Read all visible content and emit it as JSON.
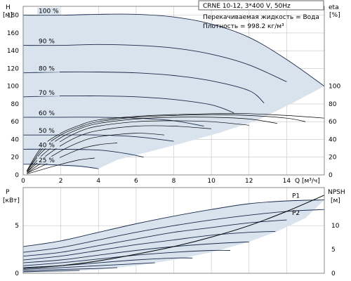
{
  "title": "CRNE 10-12, 3*400 V, 50Hz",
  "fluid_label": "Перекачиваемая жидкость = Вода",
  "density_label": "Плотность = 998.2 кг/м³",
  "colors": {
    "envelope": "#d9e3ee",
    "curve": "#1a2a4a",
    "grid": "#c4c4c4",
    "efficiency": "#000000"
  },
  "chart_data": [
    {
      "type": "line",
      "id": "head",
      "xlabel": "Q [м³/ч]",
      "ylabel_left": [
        "H",
        "[м]"
      ],
      "ylabel_right": [
        "eta",
        "[%]"
      ],
      "xlim": [
        0,
        16
      ],
      "ylim": [
        0,
        190
      ],
      "y2lim": [
        0,
        190
      ],
      "xticks": [
        "0",
        "2",
        "4",
        "6",
        "8",
        "10",
        "12",
        "14"
      ],
      "yticks": [
        "0",
        "20",
        "40",
        "60",
        "80",
        "100",
        "120",
        "140",
        "160",
        "180"
      ],
      "y2ticks": [
        "0",
        "20",
        "40",
        "60",
        "80",
        "100"
      ],
      "grid": true,
      "speed_curves": [
        {
          "name": "100 %",
          "points": [
            [
              0,
              180
            ],
            [
              2,
              180
            ],
            [
              4,
              181
            ],
            [
              6,
              181
            ],
            [
              8,
              178
            ],
            [
              10,
              170
            ],
            [
              12,
              155
            ],
            [
              14,
              130
            ],
            [
              16,
              100
            ]
          ]
        },
        {
          "name": "90 %",
          "points": [
            [
              0,
              146
            ],
            [
              2,
              146
            ],
            [
              4,
              147
            ],
            [
              6,
              146
            ],
            [
              8,
              143
            ],
            [
              10,
              136
            ],
            [
              12,
              124
            ],
            [
              14,
              105
            ]
          ]
        },
        {
          "name": "80 %",
          "points": [
            [
              0,
              115
            ],
            [
              2,
              116
            ],
            [
              4,
              116
            ],
            [
              6,
              115
            ],
            [
              8,
              112
            ],
            [
              10,
              106
            ],
            [
              12,
              95
            ],
            [
              12.8,
              81
            ]
          ]
        },
        {
          "name": "70 %",
          "points": [
            [
              0,
              88
            ],
            [
              2,
              89
            ],
            [
              4,
              89
            ],
            [
              6,
              88
            ],
            [
              8,
              85
            ],
            [
              10,
              79
            ],
            [
              11.2,
              70
            ]
          ]
        },
        {
          "name": "60 %",
          "points": [
            [
              0,
              65
            ],
            [
              2,
              65
            ],
            [
              4,
              65
            ],
            [
              6,
              64
            ],
            [
              8,
              61
            ],
            [
              9.6,
              55
            ]
          ]
        },
        {
          "name": "50 %",
          "points": [
            [
              0,
              45
            ],
            [
              2,
              45
            ],
            [
              4,
              45
            ],
            [
              6,
              43
            ],
            [
              8,
              38
            ]
          ]
        },
        {
          "name": "40 %",
          "points": [
            [
              0,
              29
            ],
            [
              2,
              29
            ],
            [
              4,
              28
            ],
            [
              5.5,
              24
            ],
            [
              6.4,
              20
            ]
          ]
        },
        {
          "name": "25 %",
          "points": [
            [
              0,
              12
            ],
            [
              1,
              12
            ],
            [
              2,
              11
            ],
            [
              3,
              10
            ],
            [
              4,
              7
            ]
          ]
        }
      ],
      "envelope": [
        [
          0,
          180
        ],
        [
          2,
          180
        ],
        [
          4,
          181
        ],
        [
          6,
          181
        ],
        [
          8,
          178
        ],
        [
          10,
          170
        ],
        [
          12,
          155
        ],
        [
          14,
          130
        ],
        [
          16,
          100
        ],
        [
          14.4,
          82
        ],
        [
          12.5,
          62
        ],
        [
          10.5,
          48
        ],
        [
          8.5,
          36
        ],
        [
          6.5,
          25
        ],
        [
          5,
          17
        ],
        [
          4,
          7
        ],
        [
          2,
          10
        ],
        [
          0,
          12
        ]
      ],
      "efficiency_curves": [
        {
          "points": [
            [
              0.2,
              5
            ],
            [
              1,
              32
            ],
            [
              2,
              47
            ],
            [
              3,
              56
            ],
            [
              4,
              62
            ],
            [
              6,
              66
            ],
            [
              8,
              68
            ],
            [
              10,
              69
            ],
            [
              12,
              69
            ],
            [
              14,
              67
            ],
            [
              16,
              64
            ]
          ]
        },
        {
          "points": [
            [
              0.2,
              4
            ],
            [
              1,
              29
            ],
            [
              2,
              45
            ],
            [
              3,
              54
            ],
            [
              4,
              60
            ],
            [
              6,
              65
            ],
            [
              8,
              67
            ],
            [
              10,
              68
            ],
            [
              12,
              67
            ],
            [
              14,
              64
            ],
            [
              15,
              60
            ]
          ]
        },
        {
          "points": [
            [
              0.2,
              4
            ],
            [
              1,
              26
            ],
            [
              2,
              42
            ],
            [
              3,
              52
            ],
            [
              4,
              58
            ],
            [
              6,
              63
            ],
            [
              8,
              65
            ],
            [
              10,
              65
            ],
            [
              12,
              63
            ],
            [
              13.5,
              58
            ]
          ]
        },
        {
          "points": [
            [
              0.2,
              3
            ],
            [
              1,
              22
            ],
            [
              2,
              38
            ],
            [
              3,
              49
            ],
            [
              4,
              55
            ],
            [
              6,
              60
            ],
            [
              8,
              61
            ],
            [
              10,
              60
            ],
            [
              12,
              56
            ]
          ]
        },
        {
          "points": [
            [
              0.2,
              3
            ],
            [
              1,
              18
            ],
            [
              2,
              33
            ],
            [
              3,
              44
            ],
            [
              4,
              50
            ],
            [
              6,
              55
            ],
            [
              8,
              55
            ],
            [
              10,
              52
            ]
          ]
        },
        {
          "points": [
            [
              0.2,
              2
            ],
            [
              1,
              14
            ],
            [
              2,
              27
            ],
            [
              3,
              37
            ],
            [
              4,
              43
            ],
            [
              6,
              47
            ],
            [
              7.5,
              45
            ]
          ]
        },
        {
          "points": [
            [
              0.2,
              2
            ],
            [
              1,
              10
            ],
            [
              2,
              20
            ],
            [
              3,
              29
            ],
            [
              4,
              34
            ],
            [
              5,
              36
            ]
          ]
        },
        {
          "points": [
            [
              0.2,
              1
            ],
            [
              1,
              6
            ],
            [
              2,
              12
            ],
            [
              3,
              17
            ],
            [
              3.8,
              19
            ]
          ]
        }
      ]
    },
    {
      "type": "line",
      "id": "power",
      "xlim": [
        0,
        16
      ],
      "ylim": [
        0,
        9
      ],
      "y2lim": [
        0,
        18
      ],
      "ylabel_left": [
        "P",
        "[кВт]"
      ],
      "ylabel_right": [
        "NPSH",
        "[м]"
      ],
      "yticks": [
        "0",
        "5"
      ],
      "y2ticks": [
        "0",
        "5",
        "10"
      ],
      "grid": true,
      "power_curves": [
        {
          "name": "P1",
          "points": [
            [
              0,
              2.8
            ],
            [
              2,
              3.4
            ],
            [
              4,
              4.3
            ],
            [
              6,
              5.2
            ],
            [
              8,
              6
            ],
            [
              10,
              6.7
            ],
            [
              12,
              7.3
            ],
            [
              14,
              7.6
            ],
            [
              16,
              7.7
            ]
          ]
        },
        {
          "name": "P2",
          "points": [
            [
              0,
              2.2
            ],
            [
              2,
              2.7
            ],
            [
              4,
              3.5
            ],
            [
              6,
              4.3
            ],
            [
              8,
              5
            ],
            [
              10,
              5.6
            ],
            [
              12,
              6.1
            ],
            [
              14,
              6.5
            ],
            [
              16,
              6.7
            ]
          ]
        },
        {
          "points": [
            [
              0,
              1.8
            ],
            [
              2,
              2.2
            ],
            [
              4,
              2.9
            ],
            [
              6,
              3.6
            ],
            [
              8,
              4.3
            ],
            [
              10,
              4.8
            ],
            [
              12,
              5.3
            ],
            [
              14,
              5.6
            ]
          ]
        },
        {
          "points": [
            [
              0,
              1.4
            ],
            [
              2,
              1.8
            ],
            [
              4,
              2.4
            ],
            [
              6,
              3
            ],
            [
              8,
              3.5
            ],
            [
              10,
              4
            ],
            [
              12,
              4.3
            ],
            [
              13.4,
              4.4
            ]
          ]
        },
        {
          "points": [
            [
              0,
              1.1
            ],
            [
              2,
              1.4
            ],
            [
              4,
              1.9
            ],
            [
              6,
              2.4
            ],
            [
              8,
              2.8
            ],
            [
              10,
              3.1
            ],
            [
              12,
              3.3
            ]
          ]
        },
        {
          "points": [
            [
              0,
              0.8
            ],
            [
              2,
              1.1
            ],
            [
              4,
              1.5
            ],
            [
              6,
              1.9
            ],
            [
              8,
              2.2
            ],
            [
              10,
              2.4
            ],
            [
              11,
              2.4
            ]
          ]
        },
        {
          "points": [
            [
              0,
              0.6
            ],
            [
              2,
              0.8
            ],
            [
              4,
              1.1
            ],
            [
              6,
              1.4
            ],
            [
              8,
              1.6
            ],
            [
              9,
              1.6
            ]
          ]
        },
        {
          "points": [
            [
              0,
              0.4
            ],
            [
              2,
              0.6
            ],
            [
              4,
              0.8
            ],
            [
              6,
              1
            ],
            [
              7,
              1.1
            ]
          ]
        },
        {
          "points": [
            [
              0,
              0.25
            ],
            [
              2,
              0.4
            ],
            [
              4,
              0.5
            ],
            [
              5,
              0.6
            ]
          ]
        },
        {
          "points": [
            [
              0,
              0.15
            ],
            [
              2,
              0.25
            ],
            [
              3,
              0.3
            ]
          ]
        }
      ],
      "envelope": [
        [
          0,
          2.8
        ],
        [
          2,
          3.4
        ],
        [
          4,
          4.3
        ],
        [
          6,
          5.2
        ],
        [
          8,
          6
        ],
        [
          10,
          6.7
        ],
        [
          12,
          7.3
        ],
        [
          14,
          7.6
        ],
        [
          16,
          7.7
        ],
        [
          15,
          5.8
        ],
        [
          13.5,
          4.4
        ],
        [
          12,
          3.3
        ],
        [
          10,
          2.2
        ],
        [
          8,
          1.4
        ],
        [
          6,
          0.8
        ],
        [
          4,
          0.4
        ],
        [
          2,
          0.15
        ],
        [
          0,
          0.1
        ]
      ],
      "npsh_curve": {
        "points": [
          [
            0,
            0.5
          ],
          [
            2,
            0.8
          ],
          [
            4,
            1.3
          ],
          [
            6,
            2
          ],
          [
            8,
            2.8
          ],
          [
            10,
            3.8
          ],
          [
            12,
            5
          ],
          [
            14,
            6.5
          ],
          [
            16,
            8.2
          ]
        ]
      },
      "series_labels": [
        "P1",
        "P2"
      ]
    }
  ]
}
